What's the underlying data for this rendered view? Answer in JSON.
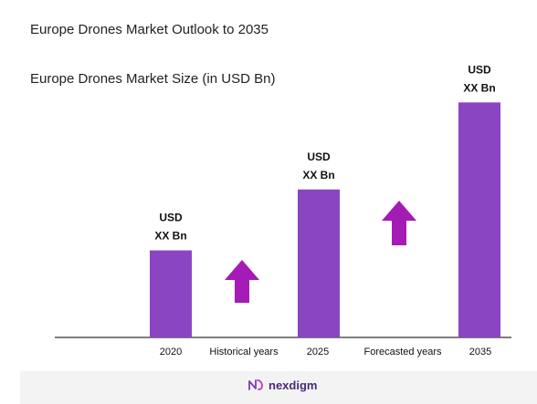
{
  "chart_data": {
    "type": "bar",
    "title": "Europe Drones  Market Outlook to 2035",
    "subtitle": "Europe Drones  Market Size (in USD Bn)",
    "categories": [
      "2020",
      "2025",
      "2035"
    ],
    "values": [
      1,
      1.7,
      2.7
    ],
    "bar_labels": [
      [
        "USD",
        "XX Bn"
      ],
      [
        "USD",
        "XX Bn"
      ],
      [
        "USD",
        "XX Bn"
      ]
    ],
    "annotations": [
      "Historical years",
      "Forecasted years"
    ],
    "ylim": [
      0,
      2.85
    ],
    "grid": false,
    "legend": "none",
    "colors": {
      "bar": "#8a45c2",
      "arrow": "#a51bb5",
      "axis": "#333333",
      "text": "#111111"
    }
  },
  "branding": {
    "logo_text": "nexdigm",
    "logo_icon": "nexdigm-n-icon",
    "logo_color": "#4a2a7a"
  }
}
